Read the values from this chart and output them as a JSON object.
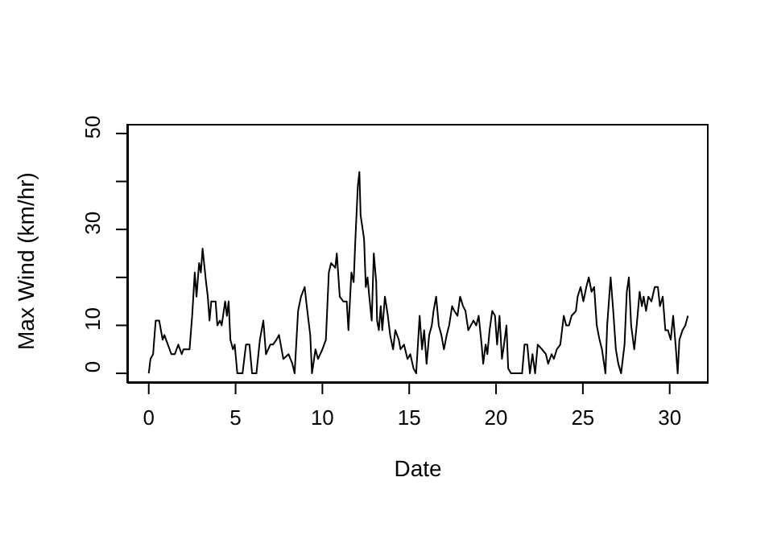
{
  "chart_data": {
    "type": "line",
    "xlabel": "Date",
    "ylabel": "Max Wind (km/hr)",
    "x": [
      0,
      0.1,
      0.25,
      0.4,
      0.6,
      0.8,
      0.9,
      1.0,
      1.3,
      1.5,
      1.7,
      1.9,
      2.0,
      2.35,
      2.5,
      2.65,
      2.75,
      2.9,
      3.0,
      3.1,
      3.3,
      3.4,
      3.5,
      3.6,
      3.85,
      3.95,
      4.1,
      4.2,
      4.4,
      4.5,
      4.6,
      4.7,
      4.85,
      4.95,
      5.1,
      5.4,
      5.6,
      5.8,
      5.95,
      6.2,
      6.4,
      6.6,
      6.75,
      7.0,
      7.15,
      7.35,
      7.5,
      7.75,
      8.05,
      8.27,
      8.4,
      8.6,
      8.77,
      8.98,
      9.1,
      9.3,
      9.4,
      9.6,
      9.75,
      10.0,
      10.2,
      10.37,
      10.5,
      10.74,
      10.83,
      11.0,
      11.2,
      11.4,
      11.5,
      11.67,
      11.8,
      11.9,
      12.04,
      12.13,
      12.2,
      12.4,
      12.5,
      12.6,
      12.7,
      12.84,
      12.96,
      13.1,
      13.15,
      13.25,
      13.36,
      13.45,
      13.6,
      13.77,
      13.9,
      14.07,
      14.2,
      14.4,
      14.5,
      14.7,
      14.9,
      15.06,
      15.25,
      15.4,
      15.5,
      15.6,
      15.74,
      15.86,
      16.0,
      16.15,
      16.3,
      16.4,
      16.55,
      16.7,
      16.85,
      17.0,
      17.16,
      17.3,
      17.47,
      17.6,
      17.78,
      17.93,
      18.1,
      18.24,
      18.4,
      18.55,
      18.7,
      18.86,
      19.0,
      19.17,
      19.26,
      19.4,
      19.5,
      19.63,
      19.78,
      19.94,
      20.06,
      20.2,
      20.34,
      20.46,
      20.6,
      20.7,
      20.86,
      21.17,
      21.5,
      21.64,
      21.8,
      21.95,
      22.1,
      22.25,
      22.4,
      22.65,
      22.87,
      23.0,
      23.2,
      23.33,
      23.5,
      23.7,
      23.9,
      24.04,
      24.2,
      24.35,
      24.6,
      24.7,
      24.87,
      25.03,
      25.2,
      25.34,
      25.5,
      25.65,
      25.8,
      25.96,
      26.1,
      26.3,
      26.4,
      26.6,
      26.75,
      26.9,
      27.04,
      27.2,
      27.4,
      27.53,
      27.65,
      27.78,
      27.96,
      28.1,
      28.27,
      28.4,
      28.5,
      28.64,
      28.77,
      28.95,
      29.14,
      29.32,
      29.44,
      29.6,
      29.75,
      29.9,
      30.06,
      30.2,
      30.34,
      30.46,
      30.56,
      30.74,
      30.9,
      31.05
    ],
    "values": [
      0,
      3,
      4,
      11,
      11,
      7,
      8,
      7,
      4,
      4,
      6,
      4,
      5,
      5,
      12,
      21,
      16,
      23,
      21,
      26,
      19,
      16,
      11,
      15,
      15,
      10,
      11,
      10,
      15,
      12,
      15,
      7,
      5,
      6,
      0,
      0,
      6,
      6,
      0,
      0,
      7,
      11,
      4,
      6,
      6,
      7,
      8,
      3,
      4,
      2,
      0,
      13,
      16,
      18,
      14,
      8,
      0,
      5,
      3,
      5,
      7,
      21,
      23,
      22,
      25,
      16,
      15,
      15,
      9,
      21,
      19,
      28,
      39,
      42,
      33,
      28,
      18,
      20,
      16,
      11,
      25,
      19,
      11,
      9,
      14,
      9,
      16,
      12,
      8,
      5,
      9,
      7,
      5,
      6,
      3,
      4,
      1,
      0,
      6,
      12,
      5,
      9,
      2,
      8,
      10,
      13,
      16,
      10,
      8,
      5,
      8,
      10,
      14,
      13,
      12,
      16,
      14,
      13,
      9,
      10,
      11,
      10,
      12,
      6,
      2,
      6,
      4,
      9,
      13,
      12,
      6,
      12,
      3,
      6,
      10,
      1,
      0,
      0,
      0,
      6,
      6,
      0,
      4,
      0,
      6,
      5,
      4,
      2,
      4,
      3,
      5,
      6,
      12,
      10,
      10,
      12,
      13,
      16,
      18,
      15,
      18,
      20,
      17,
      18,
      10,
      7,
      5,
      0,
      10,
      20,
      13,
      5,
      2,
      0,
      6,
      17,
      20,
      10,
      5,
      10,
      17,
      14,
      16,
      13,
      16,
      15,
      18,
      18,
      14,
      16,
      9,
      9,
      7,
      12,
      6,
      0,
      7,
      9,
      10,
      12
    ],
    "color": "#000000",
    "line_style": "solid",
    "marker": "none",
    "xlim": [
      -1.24,
      32.24
    ],
    "xticks": [
      0,
      5,
      10,
      15,
      20,
      25,
      30
    ],
    "ylim": [
      -2,
      52
    ],
    "yticks": [
      0,
      10,
      {
        "value": 20,
        "label": null
      },
      30,
      {
        "value": 40,
        "label": null
      },
      50
    ]
  }
}
